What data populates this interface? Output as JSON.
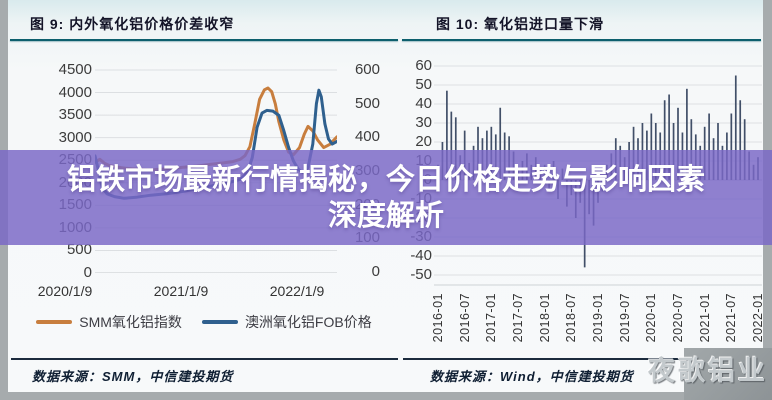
{
  "page": {
    "banner": {
      "line1": "铝铁市场最新行情揭秘，今日价格走势与影响因素",
      "line2": "深度解析",
      "bg_color": "#7968c6"
    },
    "watermark": "夜歌铝业"
  },
  "left_chart": {
    "title": "图 9: 内外氧化铝价格价差收窄",
    "source": "数据来源：SMM，中信建投期货",
    "legend": [
      {
        "label": "SMM氧化铝指数",
        "color": "#c87e3e"
      },
      {
        "label": "澳洲氧化铝FOB价格",
        "color": "#2f608e"
      }
    ]
  },
  "right_chart": {
    "title": "图 10: 氧化铝进口量下滑",
    "source": "数据来源：Wind，中信建投期货"
  },
  "chart_data": [
    {
      "type": "line",
      "title": "内外氧化铝价格价差收窄",
      "x_ticks": [
        "2020/1/9",
        "2021/1/9",
        "2022/1/9"
      ],
      "ylim_left": [
        0,
        4500
      ],
      "yticks_left": [
        4500,
        4000,
        3500,
        3000,
        2500,
        2000,
        1500,
        1000,
        500,
        0
      ],
      "ylim_right": [
        0,
        600
      ],
      "yticks_right": [
        600,
        500,
        400,
        300,
        200,
        100,
        0
      ],
      "grid": true,
      "legend_position": "bottom",
      "series": [
        {
          "name": "SMM氧化铝指数",
          "axis": "left",
          "color": "#c87e3e",
          "x": [
            0.0,
            0.02,
            0.04,
            0.06,
            0.09,
            0.13,
            0.18,
            0.24,
            0.3,
            0.36,
            0.42,
            0.48,
            0.53,
            0.57,
            0.6,
            0.62,
            0.64,
            0.66,
            0.68,
            0.7,
            0.715,
            0.73,
            0.745,
            0.76,
            0.78,
            0.8,
            0.82,
            0.845,
            0.865,
            0.88,
            0.9,
            0.92,
            0.945,
            0.97,
            1.0
          ],
          "values": [
            2450,
            2520,
            2430,
            2380,
            2350,
            2320,
            2300,
            2290,
            2310,
            2340,
            2370,
            2410,
            2440,
            2470,
            2520,
            2600,
            2800,
            3300,
            3850,
            4060,
            4100,
            4020,
            3750,
            3350,
            2950,
            2680,
            2620,
            2780,
            3080,
            3250,
            3150,
            2950,
            2780,
            2850,
            3020
          ]
        },
        {
          "name": "澳洲氧化铝FOB价格",
          "axis": "right",
          "color": "#2f608e",
          "x": [
            0.0,
            0.015,
            0.03,
            0.05,
            0.08,
            0.12,
            0.17,
            0.23,
            0.3,
            0.37,
            0.44,
            0.5,
            0.55,
            0.6,
            0.63,
            0.65,
            0.67,
            0.69,
            0.71,
            0.735,
            0.76,
            0.78,
            0.8,
            0.82,
            0.84,
            0.86,
            0.88,
            0.9,
            0.915,
            0.925,
            0.935,
            0.95,
            0.965,
            0.98,
            1.0
          ],
          "values": [
            345,
            300,
            250,
            232,
            224,
            219,
            222,
            228,
            233,
            240,
            250,
            258,
            265,
            275,
            295,
            340,
            430,
            472,
            480,
            478,
            465,
            420,
            370,
            330,
            305,
            295,
            310,
            380,
            500,
            540,
            520,
            440,
            395,
            380,
            388
          ]
        }
      ]
    },
    {
      "type": "bar",
      "title": "氧化铝进口量下滑",
      "x_ticks": [
        "2016-01",
        "2016-07",
        "2017-01",
        "2017-07",
        "2018-01",
        "2018-07",
        "2019-01",
        "2019-07",
        "2020-01",
        "2020-07",
        "2021-01",
        "2021-07",
        "2022-01"
      ],
      "ylim": [
        -50,
        60
      ],
      "yticks": [
        60,
        50,
        40,
        30,
        20,
        10,
        0,
        -10,
        -20,
        -30,
        -40,
        -50
      ],
      "grid": true,
      "bar_color": "#414f68",
      "start_month": "2016-01",
      "values": [
        8,
        20,
        47,
        36,
        33,
        13,
        26,
        9,
        18,
        28,
        22,
        26,
        28,
        24,
        38,
        25,
        23,
        15,
        6,
        10,
        14,
        8,
        12,
        5,
        8,
        -6,
        10,
        -10,
        6,
        -14,
        -8,
        -20,
        -12,
        -46,
        -18,
        -24,
        -12,
        -6,
        8,
        14,
        22,
        18,
        12,
        20,
        28,
        22,
        30,
        26,
        35,
        30,
        25,
        42,
        45,
        30,
        38,
        25,
        48,
        32,
        24,
        18,
        28,
        35,
        22,
        30,
        18,
        25,
        35,
        55,
        42,
        32,
        15,
        8,
        12
      ]
    }
  ]
}
